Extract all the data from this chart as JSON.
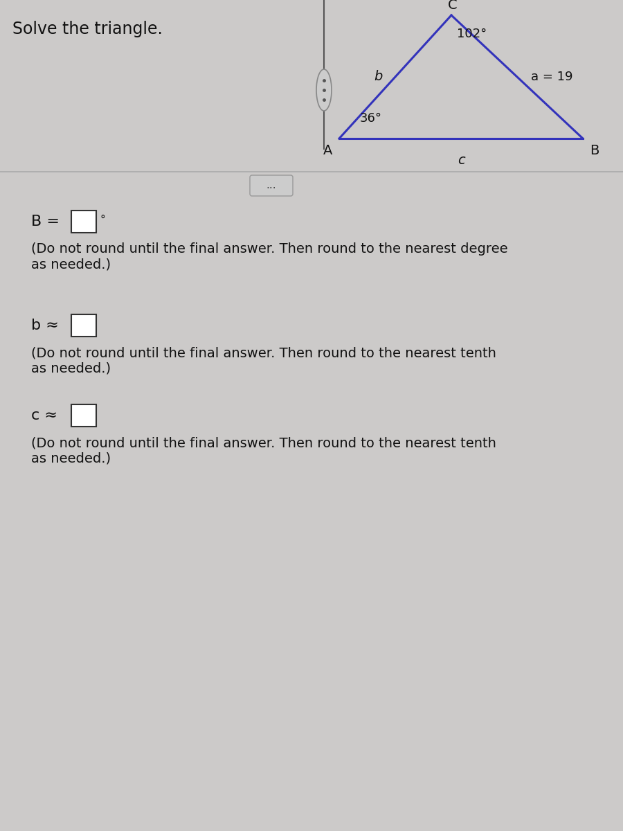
{
  "title": "Solve the triangle.",
  "bg_color": "#cccac9",
  "triangle": {
    "A": [
      0.0,
      0.0
    ],
    "C": [
      0.42,
      1.0
    ],
    "B": [
      1.0,
      0.0
    ],
    "angle_A_label": "36°",
    "angle_C_label": "102°",
    "side_a_label": "a = 19",
    "side_b_label": "b",
    "side_c_label": "c",
    "vertex_A_label": "A",
    "vertex_B_label": "B",
    "vertex_C_label": "C",
    "line_color": "#3333bb",
    "line_width": 2.2
  },
  "divider_color": "#aaaaaa",
  "fields": [
    {
      "label": "B =",
      "suffix": "°",
      "box": true,
      "note": "(Do not round until the final answer. Then round to the nearest degree\nas needed.)"
    },
    {
      "label": "b ≈",
      "suffix": "",
      "box": true,
      "note": "(Do not round until the final answer. Then round to the nearest tenth\nas needed.)"
    },
    {
      "label": "c ≈",
      "suffix": "",
      "box": true,
      "note": "(Do not round until the final answer. Then round to the nearest tenth\nas needed.)"
    }
  ],
  "font_size_title": 17,
  "font_size_label": 16,
  "font_size_note": 14,
  "text_color": "#111111"
}
